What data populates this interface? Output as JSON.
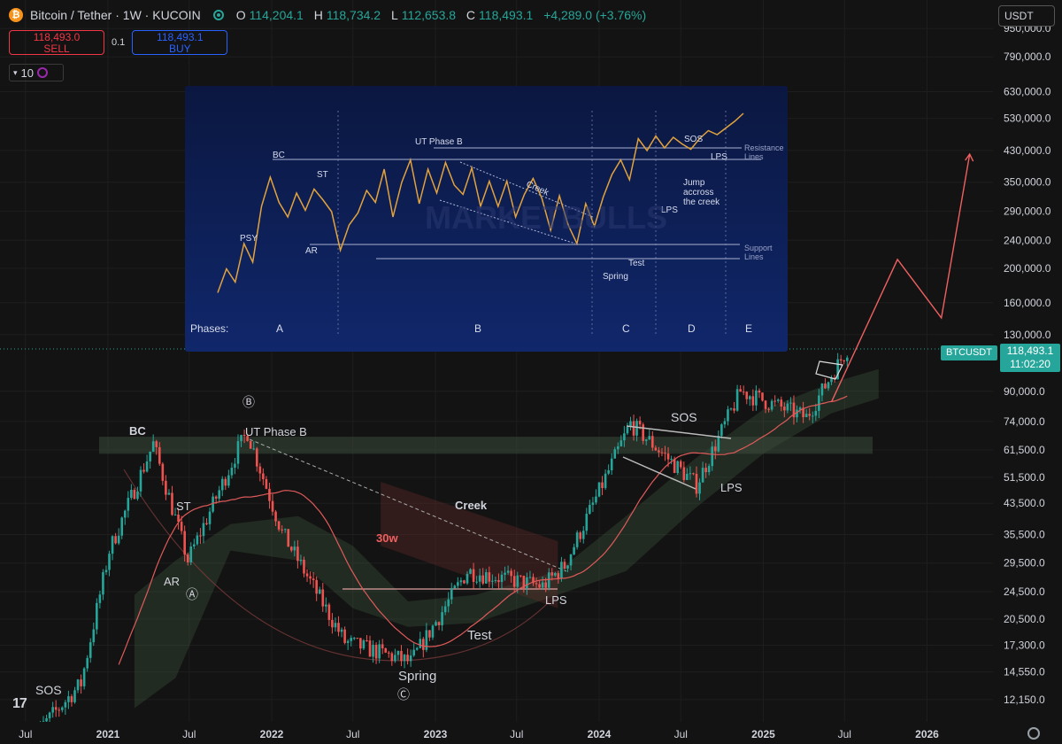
{
  "header": {
    "symbol": "Bitcoin / Tether · 1W · KUCOIN",
    "logo_glyph": "₿",
    "open_label": "O",
    "open": "114,204.1",
    "high_label": "H",
    "high": "118,734.2",
    "low_label": "L",
    "low": "112,653.8",
    "close_label": "C",
    "close": "118,493.1",
    "change": "+4,289.0 (+3.76%)"
  },
  "trade": {
    "sell_price": "118,493.0",
    "sell_label": "SELL",
    "spread": "0.1",
    "buy_price": "118,493.1",
    "buy_label": "BUY"
  },
  "indicator": {
    "count": "10"
  },
  "currency": "USDT",
  "price_tag": {
    "symbol": "BTCUSDT",
    "price": "118,493.1",
    "countdown": "11:02:20"
  },
  "tv_logo": "17",
  "colors": {
    "up": "#26a69a",
    "down": "#ef5350",
    "ma": "#e05a5a",
    "cloud": "#4a6b4a",
    "inset_bg": "#0c1a44",
    "inset_line": "#e2a33c"
  },
  "chart_data": [
    {
      "type": "line",
      "series": [
        {
          "name": "",
          "x": [
            "2020-07-06",
            "2020-11-02",
            "2021-01-04",
            "2021-04-12",
            "2021-06-28",
            "2021-10-18",
            "2021-11-08",
            "2022-01-24",
            "2022-06-13",
            "2022-11-07",
            "2023-03-13",
            "2023-08-28",
            "2023-10-16",
            "2024-03-11",
            "2024-08-05",
            "2024-11-11",
            "2025-04-07",
            "2025-07-07"
          ],
          "y": [
            9200,
            13500,
            32000,
            64000,
            30000,
            62000,
            69000,
            36000,
            17700,
            15500,
            28000,
            25400,
            29000,
            73000,
            49000,
            90000,
            76000,
            118493
          ]
        }
      ],
      "projection": {
        "x": [
          "2025-06-02",
          "2025-10-27",
          "2026-02-02",
          "2026-04-06"
        ],
        "y": [
          84000,
          212000,
          145000,
          420000
        ]
      },
      "ylim": [
        11000,
        1000000
      ],
      "log_scale": true,
      "last_price": 118493.1,
      "x_tick_labels": [
        "Jul",
        "2021",
        "Jul",
        "2022",
        "Jul",
        "2023",
        "Jul",
        "2024",
        "Jul",
        "2025",
        "Jul",
        "2026"
      ],
      "y_tick_labels": [
        "950,000.0",
        "790,000.0",
        "630,000.0",
        "530,000.0",
        "430,000.0",
        "350,000.0",
        "290,000.0",
        "240,000.0",
        "200,000.0",
        "160,000.0",
        "130,000.0",
        "90,000.0",
        "74,000.0",
        "61,500.0",
        "51,500.0",
        "43,500.0",
        "35,500.0",
        "29,500.0",
        "24,500.0",
        "20,500.0",
        "17,300.0",
        "14,550.0",
        "12,150.0"
      ],
      "annotations": [
        "BC",
        "UT Phase B",
        "ST",
        "AR",
        "Spring",
        "Test",
        "Creek",
        "30w",
        "LPS",
        "SOS",
        "LPS",
        "SOS",
        "Ⓐ",
        "Ⓑ",
        "Ⓒ"
      ]
    },
    {
      "type": "line",
      "series": [
        {
          "name": "",
          "x": [
            0,
            1,
            2,
            3,
            4,
            5,
            6,
            7,
            8,
            9,
            10,
            11,
            12,
            13,
            14,
            15,
            16,
            17,
            18,
            19,
            20,
            21,
            22,
            23,
            24,
            25,
            26,
            27,
            28,
            29,
            30,
            31,
            32,
            33,
            34,
            35,
            36,
            37,
            38,
            39,
            40,
            41,
            42,
            43,
            44,
            45,
            46,
            47,
            48,
            49,
            50,
            51,
            52,
            53,
            54,
            55,
            56,
            57,
            58,
            59,
            60
          ],
          "y": [
            5,
            23,
            13,
            42,
            28,
            70,
            92,
            73,
            62,
            80,
            67,
            83,
            75,
            66,
            37,
            56,
            65,
            82,
            73,
            98,
            62,
            88,
            105,
            72,
            98,
            80,
            103,
            86,
            79,
            99,
            70,
            89,
            70,
            89,
            62,
            79,
            91,
            76,
            52,
            78,
            56,
            42,
            72,
            55,
            77,
            94,
            105,
            90,
            121,
            112,
            123,
            114,
            122,
            117,
            113,
            121,
            127,
            124,
            129,
            134,
            140
          ]
        }
      ],
      "annotations": [
        "PSY",
        "BC",
        "AR",
        "ST",
        "UT Phase B",
        "Creek",
        "Spring",
        "Test",
        "LPS",
        "Jump accross the creek",
        "SOS",
        "LPS",
        "Resistance Lines",
        "Support Lines",
        "Phases:",
        "A",
        "B",
        "C",
        "D",
        "E",
        "MARKETBULLS"
      ],
      "phases": [
        "A",
        "B",
        "C",
        "D",
        "E"
      ]
    }
  ]
}
